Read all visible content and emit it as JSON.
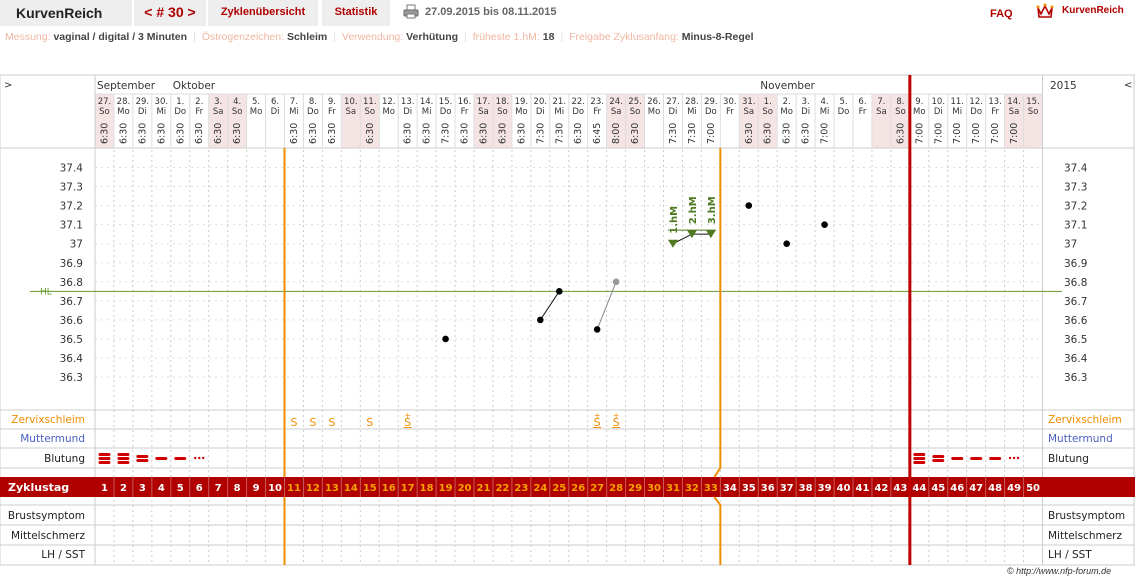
{
  "header": {
    "app_title": "KurvenReich",
    "cycle_nav": "< # 30 >",
    "tabs": [
      "Zyklenübersicht",
      "Statistik"
    ],
    "date_range": "27.09.2015 bis 08.11.2015",
    "faq": "FAQ",
    "brand": "KurvenReich"
  },
  "settings": [
    {
      "label": "Messung:",
      "value": "vaginal / digital / 3 Minuten"
    },
    {
      "label": "Östrogenzeichen:",
      "value": "Schleim"
    },
    {
      "label": "Verwendung:",
      "value": "Verhütung"
    },
    {
      "label": "früheste 1.hM:",
      "value": "18"
    },
    {
      "label": "Freigabe Zyklusanfang:",
      "value": "Minus-8-Regel"
    }
  ],
  "nav": {
    "prev": ">",
    "next": "<"
  },
  "colors": {
    "accent_red": "#b00000",
    "orange": "#f08c00",
    "weekend_bg": "#f4e4e4",
    "hl_line": "#669933",
    "blue": "#4a5fc1",
    "measurement_green": "#4f7a21"
  },
  "chart_data": {
    "type": "scatter",
    "ylim": [
      36.2,
      37.5
    ],
    "y_ticks": [
      "37.4",
      "37.3",
      "37.2",
      "37.1",
      "37",
      "36.9",
      "36.8",
      "36.7",
      "36.6",
      "36.5",
      "36.4",
      "36.3"
    ],
    "hl_label": "HL",
    "hl_value": 36.75,
    "months": [
      {
        "name": "September",
        "day_index": 1
      },
      {
        "name": "Oktober",
        "day_index": 5
      },
      {
        "name": "November",
        "day_index": 36
      }
    ],
    "year_label": "2015",
    "days": [
      {
        "d": "27.",
        "w": "So",
        "t": "6:30",
        "we": true
      },
      {
        "d": "28.",
        "w": "Mo",
        "t": "6:30",
        "we": false
      },
      {
        "d": "29.",
        "w": "Di",
        "t": "6:30",
        "we": false
      },
      {
        "d": "30.",
        "w": "Mi",
        "t": "6:30",
        "we": false
      },
      {
        "d": "1.",
        "w": "Do",
        "t": "6:30",
        "we": false
      },
      {
        "d": "2.",
        "w": "Fr",
        "t": "6:30",
        "we": false
      },
      {
        "d": "3.",
        "w": "Sa",
        "t": "6:30",
        "we": true
      },
      {
        "d": "4.",
        "w": "So",
        "t": "6:30",
        "we": true
      },
      {
        "d": "5.",
        "w": "Mo",
        "t": "",
        "we": false
      },
      {
        "d": "6.",
        "w": "Di",
        "t": "",
        "we": false
      },
      {
        "d": "7.",
        "w": "Mi",
        "t": "6:30",
        "we": false
      },
      {
        "d": "8.",
        "w": "Do",
        "t": "6:30",
        "we": false
      },
      {
        "d": "9.",
        "w": "Fr",
        "t": "6:30",
        "we": false
      },
      {
        "d": "10.",
        "w": "Sa",
        "t": "",
        "we": true
      },
      {
        "d": "11.",
        "w": "So",
        "t": "6:30",
        "we": true
      },
      {
        "d": "12.",
        "w": "Mo",
        "t": "",
        "we": false
      },
      {
        "d": "13.",
        "w": "Di",
        "t": "6:30",
        "we": false
      },
      {
        "d": "14.",
        "w": "Mi",
        "t": "6:30",
        "we": false
      },
      {
        "d": "15.",
        "w": "Do",
        "t": "7:30",
        "we": false
      },
      {
        "d": "16.",
        "w": "Fr",
        "t": "6:30",
        "we": false
      },
      {
        "d": "17.",
        "w": "Sa",
        "t": "6:30",
        "we": true
      },
      {
        "d": "18.",
        "w": "So",
        "t": "6:30",
        "we": true
      },
      {
        "d": "19.",
        "w": "Mo",
        "t": "6:30",
        "we": false
      },
      {
        "d": "20.",
        "w": "Di",
        "t": "7:30",
        "we": false
      },
      {
        "d": "21.",
        "w": "Mi",
        "t": "7:30",
        "we": false
      },
      {
        "d": "22.",
        "w": "Do",
        "t": "6:30",
        "we": false
      },
      {
        "d": "23.",
        "w": "Fr",
        "t": "6:45",
        "we": false
      },
      {
        "d": "24.",
        "w": "Sa",
        "t": "8:00",
        "we": true
      },
      {
        "d": "25.",
        "w": "So",
        "t": "6:30",
        "we": true
      },
      {
        "d": "26.",
        "w": "Mo",
        "t": "",
        "we": false
      },
      {
        "d": "27.",
        "w": "Di",
        "t": "7:30",
        "we": false
      },
      {
        "d": "28.",
        "w": "Mi",
        "t": "7:30",
        "we": false
      },
      {
        "d": "29.",
        "w": "Do",
        "t": "7:00",
        "we": false
      },
      {
        "d": "30.",
        "w": "Fr",
        "t": "",
        "we": false
      },
      {
        "d": "31.",
        "w": "Sa",
        "t": "6:30",
        "we": true
      },
      {
        "d": "1.",
        "w": "So",
        "t": "6:30",
        "we": true
      },
      {
        "d": "2.",
        "w": "Mo",
        "t": "6:30",
        "we": false
      },
      {
        "d": "3.",
        "w": "Di",
        "t": "6:30",
        "we": false
      },
      {
        "d": "4.",
        "w": "Mi",
        "t": "7:00",
        "we": false
      },
      {
        "d": "5.",
        "w": "Do",
        "t": "",
        "we": false
      },
      {
        "d": "6.",
        "w": "Fr",
        "t": "",
        "we": false
      },
      {
        "d": "7.",
        "w": "Sa",
        "t": "",
        "we": true
      },
      {
        "d": "8.",
        "w": "So",
        "t": "6:30",
        "we": true
      },
      {
        "d": "9.",
        "w": "Mo",
        "t": "7:00",
        "we": false
      },
      {
        "d": "10.",
        "w": "Di",
        "t": "7:00",
        "we": false
      },
      {
        "d": "11.",
        "w": "Mi",
        "t": "7:00",
        "we": false
      },
      {
        "d": "12.",
        "w": "Do",
        "t": "7:00",
        "we": false
      },
      {
        "d": "13.",
        "w": "Fr",
        "t": "7:00",
        "we": false
      },
      {
        "d": "14.",
        "w": "Sa",
        "t": "7:00",
        "we": true
      },
      {
        "d": "15.",
        "w": "So",
        "t": "",
        "we": true
      }
    ],
    "temperatures": [
      {
        "day": 19,
        "value": 36.5,
        "state": "normal"
      },
      {
        "day": 24,
        "value": 36.6,
        "state": "normal"
      },
      {
        "day": 25,
        "value": 36.75,
        "state": "normal"
      },
      {
        "day": 27,
        "value": 36.55,
        "state": "normal"
      },
      {
        "day": 28,
        "value": 36.8,
        "state": "excluded"
      },
      {
        "day": 31,
        "value": 37.0,
        "state": "hm"
      },
      {
        "day": 32,
        "value": 37.05,
        "state": "hm"
      },
      {
        "day": 33,
        "value": 37.05,
        "state": "hm"
      },
      {
        "day": 35,
        "value": 37.2,
        "state": "normal"
      },
      {
        "day": 37,
        "value": 37.0,
        "state": "normal"
      },
      {
        "day": 39,
        "value": 37.1,
        "state": "normal"
      }
    ],
    "measurement_labels": [
      {
        "day": 31,
        "label": "1.hM"
      },
      {
        "day": 32,
        "label": "2.hM"
      },
      {
        "day": 33,
        "label": "3.hM"
      }
    ],
    "markers": {
      "orange_line_day": 11,
      "orange_line2_day": 33,
      "red_line_day": 43
    },
    "rows": {
      "cervical": "Zervixschleim",
      "cervix": "Muttermund",
      "bleeding": "Blutung",
      "cycle_day": "Zyklustag",
      "breast": "Brustsymptom",
      "mittelschmerz": "Mittelschmerz",
      "lh": "LH / SST"
    },
    "mucus": [
      {
        "day": 11,
        "sym": "S",
        "plus": false
      },
      {
        "day": 12,
        "sym": "S",
        "plus": false
      },
      {
        "day": 13,
        "sym": "S",
        "plus": false
      },
      {
        "day": 15,
        "sym": "S",
        "plus": false
      },
      {
        "day": 17,
        "sym": "S",
        "plus": true
      },
      {
        "day": 27,
        "sym": "S",
        "plus": true
      },
      {
        "day": 28,
        "sym": "S",
        "plus": true
      }
    ],
    "bleeding": [
      {
        "day": 1,
        "level": "strong"
      },
      {
        "day": 2,
        "level": "strong"
      },
      {
        "day": 3,
        "level": "medium"
      },
      {
        "day": 4,
        "level": "light"
      },
      {
        "day": 5,
        "level": "light"
      },
      {
        "day": 6,
        "level": "spotting"
      },
      {
        "day": 44,
        "level": "strong"
      },
      {
        "day": 45,
        "level": "medium"
      },
      {
        "day": 46,
        "level": "light"
      },
      {
        "day": 47,
        "level": "light"
      },
      {
        "day": 48,
        "level": "light"
      },
      {
        "day": 49,
        "level": "spotting"
      }
    ],
    "cycle_days": [
      "1",
      "2",
      "3",
      "4",
      "5",
      "6",
      "7",
      "8",
      "9",
      "10",
      "11",
      "12",
      "13",
      "14",
      "15",
      "16",
      "17",
      "18",
      "19",
      "20",
      "21",
      "22",
      "23",
      "24",
      "25",
      "26",
      "27",
      "28",
      "29",
      "30",
      "31",
      "32",
      "33",
      "34",
      "35",
      "36",
      "37",
      "38",
      "39",
      "40",
      "41",
      "42",
      "43",
      "44",
      "45",
      "46",
      "47",
      "48",
      "49",
      "50"
    ],
    "orange_cycle_range": [
      11,
      33
    ]
  },
  "footer": {
    "copyright": "© http://www.nfp-forum.de"
  }
}
